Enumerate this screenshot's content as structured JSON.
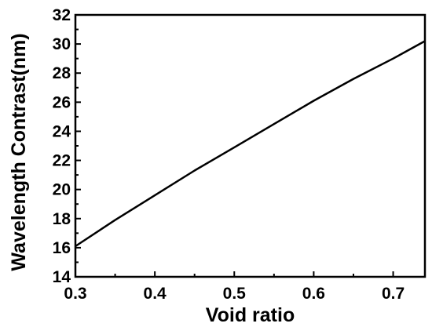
{
  "chart_data": {
    "type": "line",
    "title": "",
    "xlabel": "Void ratio",
    "ylabel": "Wavelength Contrast(nm)",
    "xlim": [
      0.3,
      0.74
    ],
    "ylim": [
      14,
      32
    ],
    "x_ticks": [
      0.3,
      0.4,
      0.5,
      0.6,
      0.7
    ],
    "x_tick_labels": [
      "0.3",
      "0.4",
      "0.5",
      "0.6",
      "0.7"
    ],
    "y_ticks": [
      14,
      16,
      18,
      20,
      22,
      24,
      26,
      28,
      30,
      32
    ],
    "y_tick_labels": [
      "14",
      "16",
      "18",
      "20",
      "22",
      "24",
      "26",
      "28",
      "30",
      "32"
    ],
    "grid": false,
    "series": [
      {
        "color": "#000000",
        "x": [
          0.3,
          0.35,
          0.4,
          0.45,
          0.5,
          0.55,
          0.6,
          0.65,
          0.7,
          0.74
        ],
        "y": [
          16.1,
          17.9,
          19.6,
          21.3,
          22.9,
          24.5,
          26.1,
          27.6,
          29.0,
          30.2
        ]
      }
    ]
  }
}
